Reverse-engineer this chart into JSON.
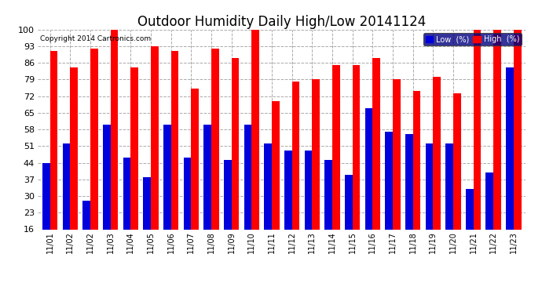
{
  "title": "Outdoor Humidity Daily High/Low 20141124",
  "copyright": "Copyright 2014 Cartronics.com",
  "labels": [
    "11/01",
    "11/02",
    "11/02",
    "11/03",
    "11/04",
    "11/05",
    "11/06",
    "11/07",
    "11/08",
    "11/09",
    "11/10",
    "11/11",
    "11/12",
    "11/13",
    "11/14",
    "11/15",
    "11/16",
    "11/17",
    "11/18",
    "11/19",
    "11/20",
    "11/21",
    "11/22",
    "11/23"
  ],
  "high": [
    91,
    84,
    92,
    100,
    84,
    93,
    91,
    75,
    92,
    88,
    100,
    70,
    78,
    79,
    85,
    85,
    88,
    79,
    74,
    80,
    73,
    100,
    100,
    100
  ],
  "low": [
    44,
    52,
    28,
    60,
    46,
    38,
    60,
    46,
    60,
    45,
    60,
    52,
    49,
    49,
    45,
    39,
    67,
    57,
    56,
    52,
    52,
    33,
    40,
    84
  ],
  "bar_width": 0.38,
  "ymin": 16,
  "ymax": 100,
  "yticks": [
    16,
    23,
    30,
    37,
    44,
    51,
    58,
    65,
    72,
    79,
    86,
    93,
    100
  ],
  "high_color": "#ff0000",
  "low_color": "#0000dd",
  "bg_color": "#ffffff",
  "grid_color": "#aaaaaa",
  "title_fontsize": 12,
  "legend_label_low": "Low  (%)",
  "legend_label_high": "High  (%)"
}
